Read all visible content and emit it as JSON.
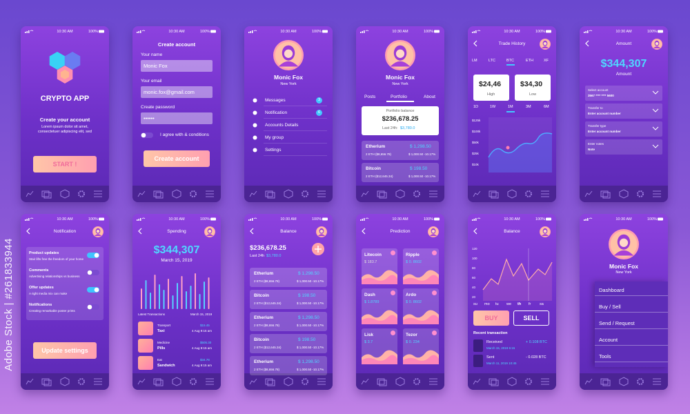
{
  "status": {
    "time": "10:30 AM",
    "battery": "100%"
  },
  "watermark": "Adobe Stock | #261833944",
  "screens": [
    {
      "title": "CRYPTO APP",
      "heading": "Create your account",
      "text": "Lorem ipsum dolor sit amet, consectetuer adipiscing elit, sed",
      "button": "START !"
    },
    {
      "title": "Create account",
      "fields": [
        {
          "label": "Your name",
          "value": "Monic Fox"
        },
        {
          "label": "Your email",
          "value": "monic.fox@gmail.com"
        },
        {
          "label": "Create password",
          "value": "••••••"
        }
      ],
      "agree": "I agree with & conditions",
      "button": "Create account"
    },
    {
      "name": "Monic Fox",
      "location": "New York",
      "menu": [
        {
          "label": "Messages",
          "badge": 3
        },
        {
          "label": "Notification",
          "badge": 6
        },
        {
          "label": "Accounts Details"
        },
        {
          "label": "My group"
        },
        {
          "label": "Settings"
        }
      ]
    },
    {
      "name": "Monic Fox",
      "location": "New York",
      "tabs": [
        "Posts",
        "Portfolio",
        "About"
      ],
      "card_label": "Portfolio balance",
      "balance": "$236,678.25",
      "change_label": "Last 24h:",
      "change": "$3,780.0",
      "assets": [
        {
          "name": "Etherium",
          "price": "$ 1,298.50",
          "holding": "2 ETH ($8,656.78)",
          "change": "$ 1,000.50 -10.17%"
        },
        {
          "name": "Bitcoin",
          "price": "$ 198.50",
          "holding": "2 ETH ($12,645.34)",
          "change": "$ 1,000.50 -10.17%"
        }
      ]
    },
    {
      "title": "Trade History",
      "coins": [
        "LM",
        "LTC",
        "BTC",
        "ETH",
        "XF"
      ],
      "high": "$24,46",
      "high_label": "High",
      "low": "$34,30",
      "low_label": "Low",
      "periods": [
        "1D",
        "1W",
        "1M",
        "3M",
        "6M"
      ],
      "yticks": [
        "$125k",
        "$100k",
        "$50k",
        "$25k",
        "$10k"
      ]
    },
    {
      "title": "Amount",
      "amount": "$344,307",
      "amount_label": "Amount",
      "fields": [
        {
          "label": "Select account",
          "value": "3567 **** **** 5600"
        },
        {
          "label": "Transfer to",
          "value": "Enter account number"
        },
        {
          "label": "Transfer type",
          "value": "Enter account number"
        },
        {
          "label": "Enter notes",
          "value": "Note"
        }
      ]
    },
    {
      "title": "Notification",
      "items": [
        {
          "title": "Product updates",
          "text": "Stair lifts free the freedom of your home"
        },
        {
          "title": "Comments",
          "text": "Advertising relationships vs business"
        },
        {
          "title": "Offer updates",
          "text": "A right media mix can make"
        },
        {
          "title": "Notifications",
          "text": "Creating remarkable poster prints"
        }
      ],
      "button": "Update settings"
    },
    {
      "title": "Spending",
      "amount": "$344,307",
      "date": "March 15, 2019",
      "list_title": "Latest Transactions",
      "list_date": "March 15, 2019",
      "transactions": [
        {
          "category": "Transport",
          "item": "Taxi",
          "amount": "$15.45",
          "time": "4 Aug 9:15 am"
        },
        {
          "category": "Medicine",
          "item": "Pills",
          "amount": "$505.30",
          "time": "4 Aug 9:15 am"
        },
        {
          "category": "Eat",
          "item": "Sandwich",
          "amount": "$34.78",
          "time": "4 Aug 9:15 am"
        }
      ]
    },
    {
      "title": "Balance",
      "balance": "$236,678.25",
      "change_label": "Last 24h",
      "change": "$3,780.0",
      "assets": [
        {
          "name": "Etherium",
          "price": "$ 1,298.50",
          "holding": "2 ETH ($8,656.78)",
          "change": "$ 1,000.50 -10.17%"
        },
        {
          "name": "Bitcoin",
          "price": "$ 198.50",
          "holding": "2 ETH ($12,645.34)",
          "change": "$ 1,000.50 -10.17%"
        },
        {
          "name": "Etherium",
          "price": "$ 1,298.50",
          "holding": "2 ETH ($8,656.78)",
          "change": "$ 1,000.50 -10.17%"
        },
        {
          "name": "Bitcoin",
          "price": "$ 198.50",
          "holding": "2 ETH ($12,645.34)",
          "change": "$ 1,000.50 -10.17%"
        },
        {
          "name": "Etherium",
          "price": "$ 1,298.50",
          "holding": "2 ETH ($8,656.78)",
          "change": "$ 1,000.50 -10.17%"
        }
      ]
    },
    {
      "title": "Prediction",
      "coins": [
        {
          "name": "Litecoin",
          "price": "$ 183.7"
        },
        {
          "name": "Ripple",
          "price": "$ 0. 8602"
        },
        {
          "name": "Dash",
          "price": "$ 1.8789"
        },
        {
          "name": "Ardo",
          "price": "$ 0. 8602"
        },
        {
          "name": "Lisk",
          "price": "$ 3.7"
        },
        {
          "name": "Tezor",
          "price": "$ 0. 234"
        }
      ]
    },
    {
      "title": "Balance",
      "yticks": [
        120,
        100,
        80,
        60,
        40,
        20
      ],
      "days": [
        "su",
        "mo",
        "tu",
        "we",
        "th",
        "fr",
        "sa"
      ],
      "buy": "BUY",
      "sell": "SELL",
      "list_title": "Recent transaction",
      "transactions": [
        {
          "label": "Received",
          "amount": "+ 0.108 BTC",
          "date": "March 15, 2019 6:15"
        },
        {
          "label": "Sent",
          "amount": "- 0.028 BTC",
          "date": "March 11, 2019 10:45"
        }
      ]
    },
    {
      "name": "Monic Fox",
      "location": "New York",
      "menu": [
        "Dashboard",
        "Buy / Sell",
        "Send / Request",
        "Account",
        "Tools"
      ]
    }
  ]
}
